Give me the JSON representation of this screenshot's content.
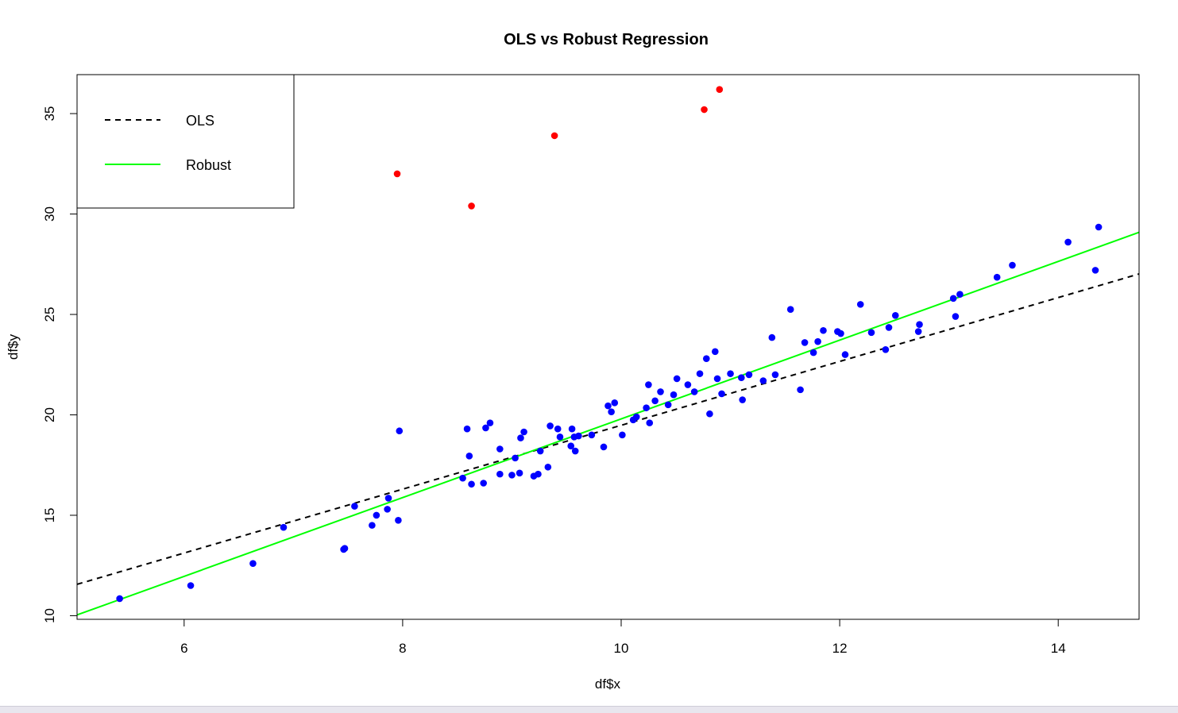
{
  "chart_data": {
    "type": "scatter",
    "title": "OLS vs Robust Regression",
    "xlabel": "df$x",
    "ylabel": "df$y",
    "xlim": [
      5.02,
      14.74
    ],
    "ylim": [
      9.82,
      36.94
    ],
    "xticks": [
      6,
      8,
      10,
      12,
      14
    ],
    "yticks": [
      10,
      15,
      20,
      25,
      30,
      35
    ],
    "grid": false,
    "legend": {
      "position": "top-left",
      "entries": [
        {
          "label": "OLS",
          "style": "dashed",
          "color": "#000000"
        },
        {
          "label": "Robust",
          "style": "solid",
          "color": "#00ff00"
        }
      ]
    },
    "lines": [
      {
        "name": "OLS",
        "intercept": 3.58,
        "slope": 1.59,
        "style": "dashed",
        "color": "#000000"
      },
      {
        "name": "Robust",
        "intercept": 0.2,
        "slope": 1.96,
        "style": "solid",
        "color": "#00ff00"
      }
    ],
    "series": [
      {
        "name": "outliers",
        "color": "#ff0000",
        "points": [
          [
            7.95,
            32.0
          ],
          [
            8.63,
            30.4
          ],
          [
            9.39,
            33.9
          ],
          [
            10.76,
            35.2
          ],
          [
            10.9,
            36.2
          ]
        ]
      },
      {
        "name": "data",
        "color": "#0000ff",
        "points": [
          [
            5.41,
            10.85
          ],
          [
            6.06,
            11.5
          ],
          [
            6.63,
            12.6
          ],
          [
            6.91,
            14.4
          ],
          [
            7.46,
            13.3
          ],
          [
            7.47,
            13.35
          ],
          [
            7.56,
            15.45
          ],
          [
            7.72,
            14.5
          ],
          [
            7.76,
            15.0
          ],
          [
            7.86,
            15.3
          ],
          [
            7.87,
            15.85
          ],
          [
            7.96,
            14.75
          ],
          [
            7.97,
            19.2
          ],
          [
            8.55,
            16.85
          ],
          [
            8.59,
            19.3
          ],
          [
            8.61,
            17.95
          ],
          [
            8.63,
            16.55
          ],
          [
            8.74,
            16.6
          ],
          [
            8.76,
            19.35
          ],
          [
            8.8,
            19.6
          ],
          [
            8.89,
            18.3
          ],
          [
            8.89,
            17.05
          ],
          [
            9.0,
            17.0
          ],
          [
            9.03,
            17.85
          ],
          [
            9.07,
            17.1
          ],
          [
            9.08,
            18.85
          ],
          [
            9.11,
            19.15
          ],
          [
            9.2,
            16.95
          ],
          [
            9.24,
            17.05
          ],
          [
            9.26,
            18.2
          ],
          [
            9.33,
            17.4
          ],
          [
            9.35,
            19.45
          ],
          [
            9.42,
            19.3
          ],
          [
            9.44,
            18.9
          ],
          [
            9.54,
            18.45
          ],
          [
            9.55,
            19.3
          ],
          [
            9.57,
            18.9
          ],
          [
            9.58,
            18.2
          ],
          [
            9.61,
            18.95
          ],
          [
            9.73,
            19.0
          ],
          [
            9.84,
            18.4
          ],
          [
            9.88,
            20.45
          ],
          [
            9.91,
            20.15
          ],
          [
            9.94,
            20.6
          ],
          [
            10.01,
            19.0
          ],
          [
            10.11,
            19.75
          ],
          [
            10.14,
            19.9
          ],
          [
            10.23,
            20.35
          ],
          [
            10.25,
            21.5
          ],
          [
            10.26,
            19.6
          ],
          [
            10.31,
            20.7
          ],
          [
            10.36,
            21.15
          ],
          [
            10.43,
            20.5
          ],
          [
            10.48,
            21.0
          ],
          [
            10.51,
            21.8
          ],
          [
            10.61,
            21.5
          ],
          [
            10.67,
            21.15
          ],
          [
            10.72,
            22.05
          ],
          [
            10.78,
            22.8
          ],
          [
            10.81,
            20.05
          ],
          [
            10.86,
            23.15
          ],
          [
            10.88,
            21.8
          ],
          [
            10.92,
            21.05
          ],
          [
            11.0,
            22.05
          ],
          [
            11.1,
            21.85
          ],
          [
            11.11,
            20.75
          ],
          [
            11.17,
            22.0
          ],
          [
            11.3,
            21.7
          ],
          [
            11.38,
            23.85
          ],
          [
            11.41,
            22.0
          ],
          [
            11.55,
            25.25
          ],
          [
            11.64,
            21.25
          ],
          [
            11.68,
            23.6
          ],
          [
            11.76,
            23.1
          ],
          [
            11.8,
            23.65
          ],
          [
            11.85,
            24.2
          ],
          [
            11.98,
            24.15
          ],
          [
            12.01,
            24.05
          ],
          [
            12.05,
            23.0
          ],
          [
            12.19,
            25.5
          ],
          [
            12.29,
            24.1
          ],
          [
            12.42,
            23.25
          ],
          [
            12.45,
            24.35
          ],
          [
            12.51,
            24.95
          ],
          [
            12.72,
            24.15
          ],
          [
            12.73,
            24.5
          ],
          [
            13.04,
            25.8
          ],
          [
            13.06,
            24.9
          ],
          [
            13.1,
            26.0
          ],
          [
            13.44,
            26.85
          ],
          [
            13.58,
            27.45
          ],
          [
            14.09,
            28.6
          ],
          [
            14.34,
            27.2
          ],
          [
            14.37,
            29.35
          ]
        ]
      }
    ]
  }
}
